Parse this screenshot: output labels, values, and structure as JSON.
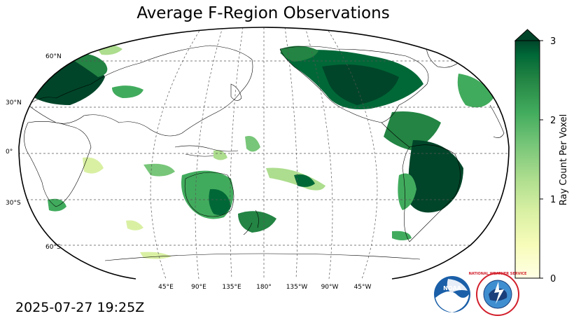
{
  "title": "Average F-Region Observations",
  "timestamp": "2025-07-27 19:25Z",
  "map": {
    "projection": "robinson",
    "central_longitude": 180,
    "lat_gridlines": [
      60,
      30,
      0,
      -30,
      -60
    ],
    "lon_gridlines": [
      45,
      90,
      135,
      180,
      -135,
      -90,
      -45
    ],
    "lat_labels": [
      "60°N",
      "30°N",
      "0°",
      "30°S",
      "60°S"
    ],
    "lon_labels": [
      "45°E",
      "90°E",
      "135°E",
      "180°",
      "135°W",
      "90°W",
      "45°W"
    ]
  },
  "colorbar": {
    "label": "Ray Count Per Voxel",
    "ticks": [
      "0",
      "1",
      "2",
      "3"
    ],
    "range": [
      0,
      3
    ],
    "extend": "max",
    "colormap": "YlGn",
    "colors": [
      "#ffffe5",
      "#f7fcb9",
      "#d9f0a3",
      "#addd8e",
      "#78c679",
      "#41ab5d",
      "#238443",
      "#006837",
      "#004529"
    ]
  },
  "logos": {
    "noaa": "NOAA",
    "nws": "NATIONAL WEATHER SERVICE"
  }
}
